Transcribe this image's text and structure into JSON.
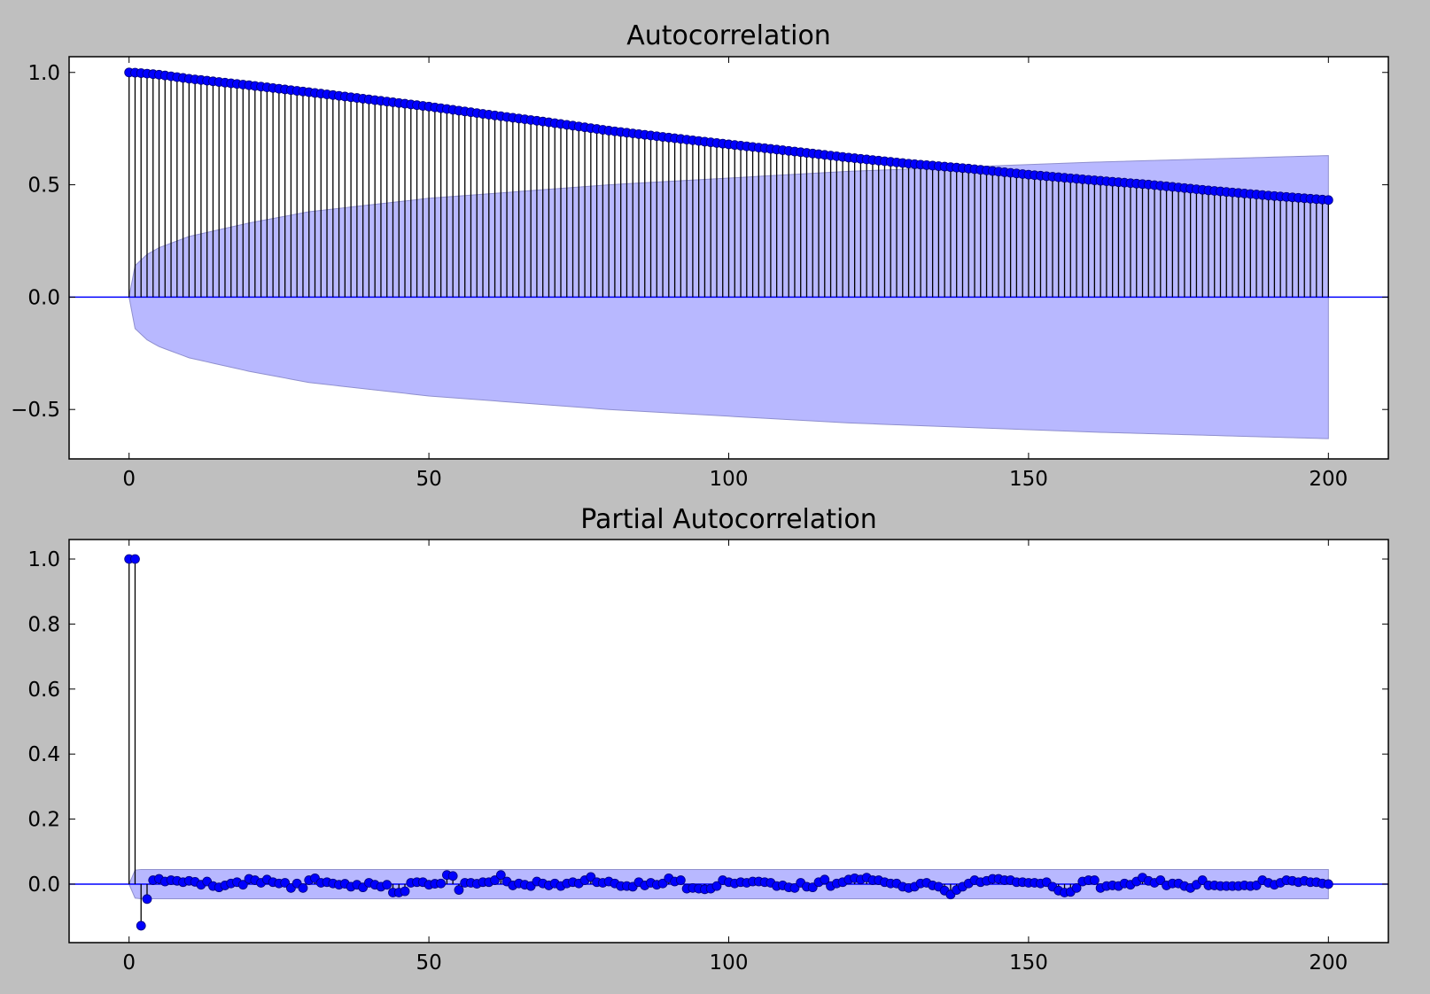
{
  "chart_data": [
    {
      "type": "stem",
      "title": "Autocorrelation",
      "xlabel": "",
      "ylabel": "",
      "xlim": [
        -10,
        210
      ],
      "ylim": [
        -0.72,
        1.07
      ],
      "x_ticks": [
        0,
        50,
        100,
        150,
        200
      ],
      "y_ticks": [
        -0.5,
        0.0,
        0.5,
        1.0
      ],
      "x_tick_labels": [
        "0",
        "50",
        "100",
        "150",
        "200"
      ],
      "y_tick_labels": [
        "−0.5",
        "0.0",
        "0.5",
        "1.0"
      ],
      "lags": {
        "start": 0,
        "end": 200
      },
      "value_keypoints": [
        [
          0,
          1.0
        ],
        [
          1,
          0.999
        ],
        [
          2,
          0.997
        ],
        [
          5,
          0.99
        ],
        [
          10,
          0.972
        ],
        [
          20,
          0.943
        ],
        [
          30,
          0.912
        ],
        [
          40,
          0.88
        ],
        [
          50,
          0.848
        ],
        [
          60,
          0.812
        ],
        [
          70,
          0.778
        ],
        [
          80,
          0.741
        ],
        [
          90,
          0.71
        ],
        [
          100,
          0.68
        ],
        [
          110,
          0.651
        ],
        [
          120,
          0.621
        ],
        [
          130,
          0.594
        ],
        [
          140,
          0.572
        ],
        [
          150,
          0.545
        ],
        [
          160,
          0.522
        ],
        [
          170,
          0.501
        ],
        [
          180,
          0.475
        ],
        [
          190,
          0.452
        ],
        [
          200,
          0.432
        ]
      ],
      "confidence_band": [
        [
          0,
          0.0
        ],
        [
          1,
          0.14
        ],
        [
          3,
          0.19
        ],
        [
          5,
          0.22
        ],
        [
          10,
          0.27
        ],
        [
          20,
          0.33
        ],
        [
          30,
          0.38
        ],
        [
          40,
          0.41
        ],
        [
          50,
          0.44
        ],
        [
          60,
          0.46
        ],
        [
          80,
          0.5
        ],
        [
          100,
          0.53
        ],
        [
          120,
          0.56
        ],
        [
          140,
          0.58
        ],
        [
          160,
          0.6
        ],
        [
          180,
          0.615
        ],
        [
          200,
          0.63
        ]
      ],
      "grid": false,
      "colors": {
        "marker": "#0000ff",
        "stem": "#000000",
        "band": "#b8b8ff",
        "band_edge": "#8f8fcf",
        "zero_line": "#0000ff"
      }
    },
    {
      "type": "stem",
      "title": "Partial Autocorrelation",
      "xlabel": "",
      "ylabel": "",
      "xlim": [
        -10,
        210
      ],
      "ylim": [
        -0.18,
        1.06
      ],
      "x_ticks": [
        0,
        50,
        100,
        150,
        200
      ],
      "y_ticks": [
        0.0,
        0.2,
        0.4,
        0.6,
        0.8,
        1.0
      ],
      "x_tick_labels": [
        "0",
        "50",
        "100",
        "150",
        "200"
      ],
      "y_tick_labels": [
        "0.0",
        "0.2",
        "0.4",
        "0.6",
        "0.8",
        "1.0"
      ],
      "lags": {
        "start": 0,
        "end": 200
      },
      "values": [
        1.0,
        1.0,
        -0.128,
        -0.046,
        0.012,
        0.016,
        0.008,
        0.012,
        0.01,
        0.006,
        0.01,
        0.007,
        -0.002,
        0.008,
        -0.006,
        -0.01,
        -0.004,
        0.002,
        0.006,
        -0.002,
        0.016,
        0.012,
        0.004,
        0.014,
        0.006,
        0.002,
        0.004,
        -0.012,
        0.002,
        -0.012,
        0.012,
        0.018,
        0.004,
        0.006,
        0.002,
        -0.002,
        0.001,
        -0.008,
        -0.002,
        -0.01,
        0.004,
        -0.002,
        -0.008,
        -0.002,
        -0.026,
        -0.026,
        -0.022,
        0.004,
        0.006,
        0.006,
        -0.002,
        0.001,
        0.002,
        0.028,
        0.025,
        -0.018,
        0.004,
        0.004,
        0.001,
        0.006,
        0.006,
        0.012,
        0.028,
        0.008,
        -0.004,
        0.002,
        -0.002,
        -0.006,
        0.008,
        0.002,
        -0.004,
        0.002,
        -0.006,
        0.002,
        0.006,
        0.002,
        0.012,
        0.022,
        0.006,
        0.004,
        0.008,
        0.002,
        -0.006,
        -0.006,
        -0.008,
        0.006,
        -0.004,
        0.004,
        -0.002,
        0.002,
        0.018,
        0.008,
        0.012,
        -0.014,
        -0.012,
        -0.014,
        -0.016,
        -0.014,
        -0.006,
        0.012,
        0.006,
        0.002,
        0.006,
        0.004,
        0.008,
        0.008,
        0.006,
        0.004,
        -0.006,
        -0.004,
        -0.01,
        -0.012,
        0.004,
        -0.008,
        -0.01,
        0.006,
        0.014,
        -0.006,
        0.002,
        0.006,
        0.014,
        0.018,
        0.014,
        0.02,
        0.012,
        0.012,
        0.006,
        0.002,
        0.002,
        -0.008,
        -0.012,
        -0.008,
        0.002,
        0.004,
        -0.004,
        -0.008,
        -0.02,
        -0.032,
        -0.018,
        -0.008,
        0.002,
        0.012,
        0.006,
        0.01,
        0.016,
        0.016,
        0.012,
        0.012,
        0.006,
        0.006,
        0.004,
        0.004,
        0.002,
        0.006,
        -0.008,
        -0.02,
        -0.026,
        -0.024,
        -0.012,
        0.008,
        0.012,
        0.012,
        -0.012,
        -0.006,
        -0.004,
        -0.006,
        0.002,
        -0.002,
        0.008,
        0.02,
        0.01,
        0.004,
        0.012,
        -0.004,
        0.002,
        0.002,
        -0.006,
        -0.012,
        -0.002,
        0.012,
        -0.004,
        -0.004,
        -0.006,
        -0.006,
        -0.006,
        -0.006,
        -0.004,
        -0.006,
        -0.004,
        0.012,
        0.004,
        -0.002,
        0.004,
        0.012,
        0.01,
        0.006,
        0.01,
        0.006,
        0.006,
        0.002,
        0.0
      ],
      "confidence_band": [
        [
          0,
          0.0
        ],
        [
          1,
          -0.043
        ],
        [
          2,
          -0.045
        ],
        [
          200,
          -0.045
        ]
      ],
      "confidence_band_upper": [
        [
          0,
          0.0
        ],
        [
          1,
          0.043
        ],
        [
          2,
          0.045
        ],
        [
          200,
          0.045
        ]
      ],
      "grid": false,
      "colors": {
        "marker": "#0000ff",
        "stem": "#000000",
        "band": "#b8b8ff",
        "band_edge": "#8f8fcf",
        "zero_line": "#0000ff"
      }
    }
  ]
}
